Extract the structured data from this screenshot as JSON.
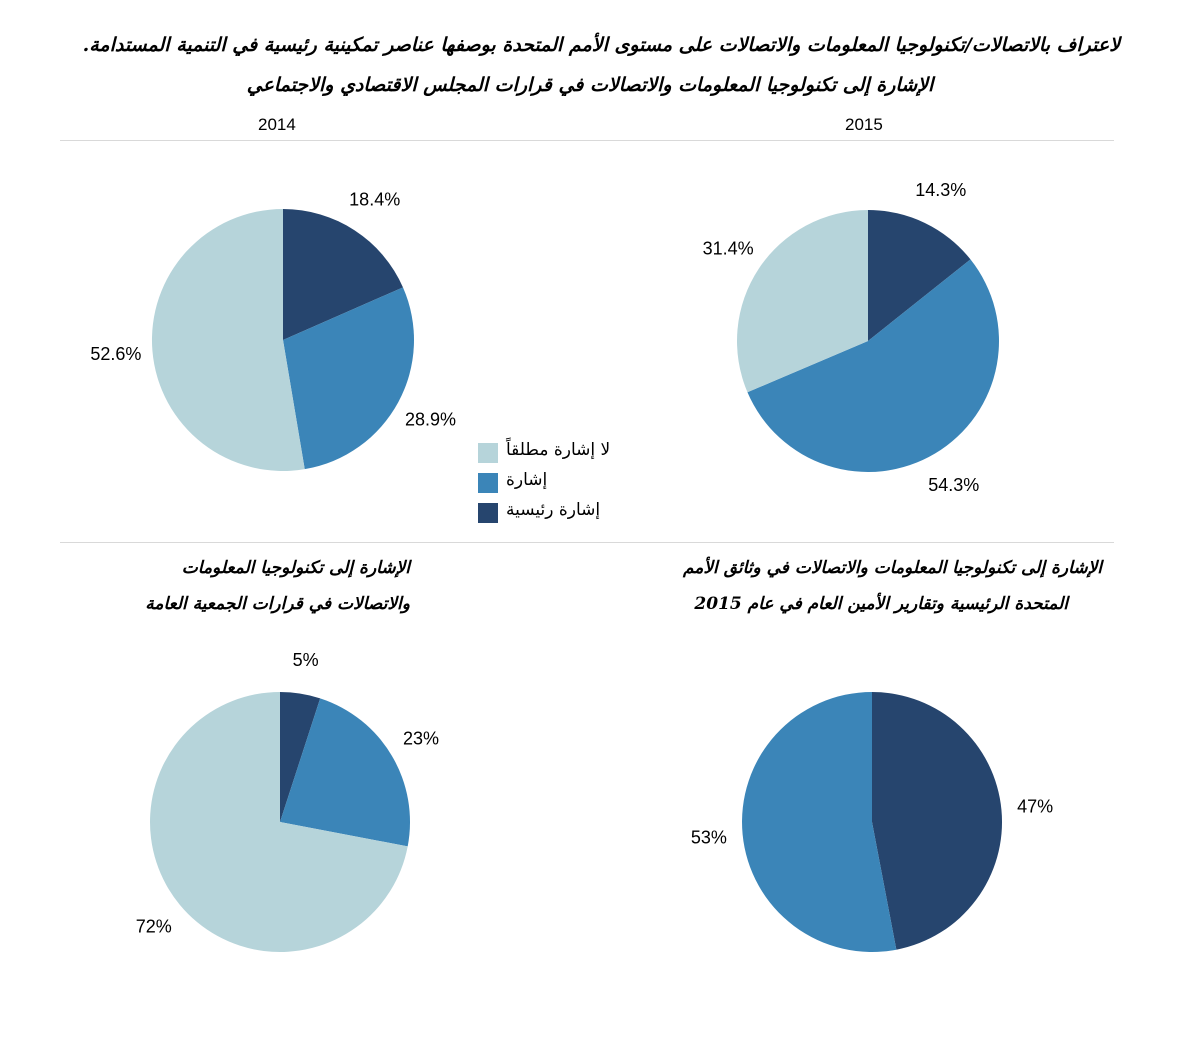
{
  "title": {
    "line1": "لاعتراف بالاتصالات/تكنولوجيا المعلومات والاتصالات على مستوى الأمم المتحدة بوصفها عناصر تمكينية رئيسية في التنمية المستدامة.",
    "line2": "الإشارة إلى تكنولوجيا المعلومات والاتصالات في قرارات المجلس الاقتصادي والاجتماعي"
  },
  "years": {
    "left": "2014",
    "right": "2015"
  },
  "subtitles": {
    "bottom_left": [
      "الإشارة إلى تكنولوجيا المعلومات",
      "والاتصالات في قرارات الجمعية العامة"
    ],
    "bottom_right": [
      "الإشارة إلى تكنولوجيا المعلومات والاتصالات في وثائق الأمم",
      "المتحدة الرئيسية وتقارير الأمين العام في عام 2015"
    ]
  },
  "legend": [
    {
      "label": "لا إشارة مطلقاً",
      "color": "#b6d4da"
    },
    {
      "label": "إشارة",
      "color": "#3b85b8"
    },
    {
      "label": "إشارة رئيسية",
      "color": "#26456e"
    }
  ],
  "colors": {
    "none": "#b6d4da",
    "mention": "#3b85b8",
    "key": "#26456e"
  },
  "chart_data": [
    {
      "type": "pie",
      "title": "2014",
      "categories": [
        "إشارة رئيسية",
        "إشارة",
        "لا إشارة مطلقاً"
      ],
      "values": [
        18.4,
        28.9,
        52.6
      ],
      "labels": [
        "18.4%",
        "28.9%",
        "52.6%"
      ]
    },
    {
      "type": "pie",
      "title": "2015",
      "categories": [
        "إشارة رئيسية",
        "إشارة",
        "لا إشارة مطلقاً"
      ],
      "values": [
        14.3,
        54.3,
        31.4
      ],
      "labels": [
        "14.3%",
        "54.3%",
        "31.4%"
      ]
    },
    {
      "type": "pie",
      "title": "الإشارة إلى تكنولوجيا المعلومات والاتصالات في قرارات الجمعية العامة",
      "categories": [
        "إشارة رئيسية",
        "إشارة",
        "لا إشارة مطلقاً"
      ],
      "values": [
        5,
        23,
        72
      ],
      "labels": [
        "5%",
        "23%",
        "72%"
      ]
    },
    {
      "type": "pie",
      "title": "الإشارة إلى تكنولوجيا المعلومات والاتصالات في وثائق الأمم المتحدة الرئيسية وتقارير الأمين العام في عام 2015",
      "categories": [
        "إشارة رئيسية",
        "إشارة"
      ],
      "values": [
        47,
        53
      ],
      "labels": [
        "47%",
        "53%"
      ]
    }
  ]
}
